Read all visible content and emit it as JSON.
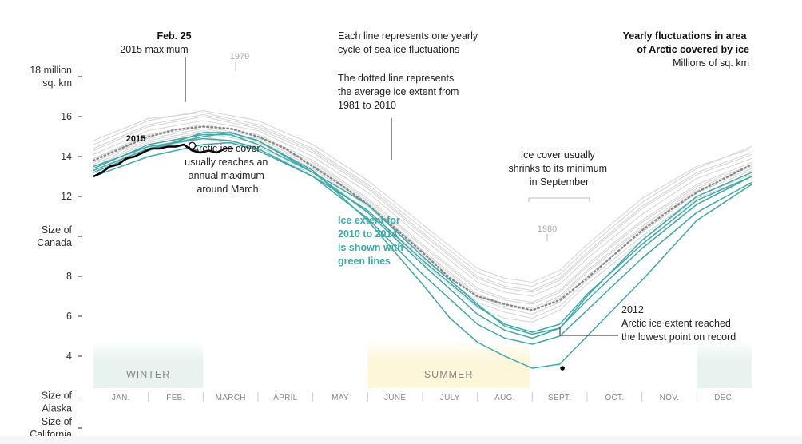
{
  "chart_data": {
    "type": "line",
    "title": "Yearly fluctuations in area of Arctic covered by ice",
    "title_lines": [
      "Yearly fluctuations in area",
      "of Arctic covered by ice"
    ],
    "subtitle": "Millions of sq. km",
    "y_unit_lines": [
      "18 million",
      "sq. km"
    ],
    "ylim": [
      0,
      18
    ],
    "grid": false,
    "y_ticks": [
      {
        "value": 18,
        "lines": [
          "18 million",
          "sq. km"
        ]
      },
      {
        "value": 16,
        "lines": [
          "16"
        ]
      },
      {
        "value": 14,
        "lines": [
          "14"
        ]
      },
      {
        "value": 12,
        "lines": [
          "12"
        ]
      },
      {
        "value": 10,
        "lines": [
          "Size of",
          "Canada"
        ]
      },
      {
        "value": 8,
        "lines": [
          "8"
        ]
      },
      {
        "value": 6,
        "lines": [
          "6"
        ]
      },
      {
        "value": 4,
        "lines": [
          "4"
        ]
      },
      {
        "value": 1.7,
        "lines": [
          "Size of",
          "Alaska"
        ]
      },
      {
        "value": 0.4,
        "lines": [
          "Size of",
          "California"
        ]
      }
    ],
    "months": [
      "JAN.",
      "FEB.",
      "MARCH",
      "APRIL",
      "MAY",
      "JUNE",
      "JULY",
      "AUG.",
      "SEPT.",
      "OCT.",
      "NOV.",
      "DEC."
    ],
    "seasons": [
      {
        "label": "WINTER",
        "start_month": 0,
        "end_month": 2,
        "color": "#e8f2ef"
      },
      {
        "label": "SUMMER",
        "start_month": 5,
        "end_month": 7.95,
        "color": "#fdf6d8"
      },
      {
        "label": "",
        "start_month": 11,
        "end_month": 12,
        "color": "#e8f2ef"
      }
    ],
    "x_unit": "month (decimal, 0 = Jan 1)",
    "average": {
      "name": "Average 1981-2010",
      "color": "#888888",
      "x": [
        0,
        0.5,
        1,
        1.5,
        2,
        2.5,
        3,
        3.5,
        4,
        4.5,
        5,
        5.5,
        6,
        6.5,
        7,
        7.5,
        8,
        8.5,
        9,
        9.5,
        10,
        10.5,
        11,
        11.5,
        12
      ],
      "y": [
        13.8,
        14.4,
        15.0,
        15.35,
        15.5,
        15.4,
        15.0,
        14.4,
        13.5,
        12.6,
        11.6,
        10.4,
        9.2,
        7.9,
        7.0,
        6.6,
        6.3,
        6.8,
        7.9,
        9.1,
        10.3,
        11.3,
        12.2,
        12.9,
        13.6
      ]
    },
    "gray_years": {
      "color": "#d6d6d6",
      "series": [
        {
          "x": [
            0,
            1,
            2,
            3,
            4,
            5,
            6,
            7,
            7.5,
            8,
            8.5,
            9,
            10,
            11,
            12
          ],
          "y": [
            14.4,
            15.6,
            16.1,
            15.5,
            14.3,
            12.5,
            10.2,
            8.0,
            7.5,
            7.3,
            7.9,
            9.2,
            11.5,
            13.2,
            14.2
          ]
        },
        {
          "x": [
            0,
            1,
            2,
            3,
            4,
            5,
            6,
            7,
            7.5,
            8,
            8.5,
            9,
            10,
            11,
            12
          ],
          "y": [
            14.1,
            15.3,
            15.8,
            15.3,
            14.0,
            12.2,
            9.9,
            7.7,
            7.2,
            7.0,
            7.6,
            8.9,
            11.1,
            12.9,
            13.9
          ]
        },
        {
          "x": [
            0,
            1,
            2,
            3,
            4,
            5,
            6,
            7,
            7.5,
            8,
            8.5,
            9,
            10,
            11,
            12
          ],
          "y": [
            13.9,
            15.1,
            15.6,
            15.1,
            13.8,
            11.9,
            9.6,
            7.4,
            6.9,
            6.7,
            7.3,
            8.6,
            10.8,
            12.6,
            13.7
          ]
        },
        {
          "x": [
            0,
            1,
            2,
            3,
            4,
            5,
            6,
            7,
            7.5,
            8,
            8.5,
            9,
            10,
            11,
            12
          ],
          "y": [
            13.7,
            14.9,
            15.4,
            14.9,
            13.6,
            11.7,
            9.3,
            7.1,
            6.6,
            6.4,
            7.0,
            8.3,
            10.5,
            12.4,
            13.5
          ]
        },
        {
          "x": [
            0,
            1,
            2,
            3,
            4,
            5,
            6,
            7,
            7.5,
            8,
            8.5,
            9,
            10,
            11,
            12
          ],
          "y": [
            13.5,
            14.7,
            15.2,
            14.7,
            13.4,
            11.5,
            9.1,
            6.9,
            6.4,
            6.1,
            6.7,
            8.0,
            10.2,
            12.2,
            13.3
          ]
        },
        {
          "x": [
            0,
            1,
            2,
            3,
            4,
            5,
            6,
            7,
            7.5,
            8,
            8.5,
            9,
            10,
            11,
            12
          ],
          "y": [
            13.3,
            14.5,
            15.0,
            14.5,
            13.2,
            11.3,
            8.9,
            6.7,
            6.2,
            5.9,
            6.5,
            7.8,
            10.0,
            12.0,
            13.1
          ]
        },
        {
          "x": [
            0,
            1,
            2,
            3,
            4,
            5,
            6,
            7,
            7.5,
            8,
            8.5,
            9,
            10,
            11,
            12
          ],
          "y": [
            14.6,
            15.8,
            16.3,
            15.8,
            14.6,
            12.8,
            10.6,
            8.4,
            7.9,
            7.7,
            8.3,
            9.6,
            11.9,
            13.5,
            14.4
          ]
        },
        {
          "x": [
            0,
            1,
            2,
            3,
            4,
            5,
            6,
            7,
            7.5,
            8,
            8.5,
            9,
            10,
            11,
            12
          ],
          "y": [
            14.8,
            15.9,
            16.2,
            15.6,
            14.4,
            12.6,
            10.4,
            8.2,
            7.7,
            7.5,
            8.1,
            9.4,
            11.7,
            13.4,
            14.5
          ]
        },
        {
          "x": [
            0,
            1,
            2,
            3,
            4,
            5,
            6,
            7,
            7.5,
            8,
            8.5,
            9,
            10,
            11,
            12
          ],
          "y": [
            13.9,
            15.0,
            15.5,
            15.0,
            13.7,
            11.8,
            9.5,
            7.3,
            6.8,
            6.6,
            7.2,
            8.5,
            10.7,
            12.5,
            13.6
          ]
        },
        {
          "x": [
            0,
            1,
            2,
            3,
            4,
            5,
            6,
            7,
            7.5,
            8,
            8.5,
            9,
            10,
            11,
            12
          ],
          "y": [
            13.6,
            14.8,
            15.3,
            14.8,
            13.5,
            11.6,
            9.2,
            7.0,
            6.5,
            6.3,
            6.9,
            8.2,
            10.4,
            12.3,
            13.4
          ]
        },
        {
          "x": [
            0,
            1,
            2,
            3,
            4,
            5,
            6,
            7,
            7.5,
            8,
            8.5,
            9,
            10,
            11,
            12
          ],
          "y": [
            13.2,
            14.4,
            14.9,
            14.4,
            13.1,
            11.2,
            8.7,
            6.4,
            5.9,
            5.7,
            6.3,
            7.6,
            9.8,
            11.9,
            13.0
          ]
        },
        {
          "x": [
            0,
            1,
            2,
            3,
            4,
            5,
            6,
            7,
            7.5,
            8,
            8.5,
            9,
            10,
            11,
            12
          ],
          "y": [
            14.3,
            15.5,
            16.0,
            15.4,
            14.2,
            12.4,
            10.1,
            7.9,
            7.4,
            7.2,
            7.8,
            9.1,
            11.4,
            13.1,
            14.1
          ]
        }
      ]
    },
    "green_years": {
      "name": "2010 to 2014",
      "color": "#3fa9a8",
      "series": [
        {
          "name": "2010",
          "x": [
            0,
            1,
            2,
            2.5,
            3,
            4,
            5,
            6,
            7,
            7.5,
            8,
            8.5,
            9,
            10,
            11,
            12
          ],
          "y": [
            13.2,
            14.3,
            15.2,
            15.2,
            14.8,
            13.2,
            11.2,
            8.6,
            6.1,
            5.3,
            4.9,
            5.4,
            6.8,
            9.4,
            11.6,
            13.0
          ]
        },
        {
          "name": "2011",
          "x": [
            0,
            1,
            2,
            2.5,
            3,
            4,
            5,
            6,
            7,
            7.5,
            8,
            8.5,
            9,
            10,
            11,
            12
          ],
          "y": [
            13.0,
            14.0,
            14.6,
            14.7,
            14.3,
            13.0,
            10.9,
            8.1,
            5.6,
            4.9,
            4.6,
            5.0,
            6.3,
            8.9,
            11.2,
            12.7
          ]
        },
        {
          "name": "2012",
          "x": [
            0,
            1,
            2,
            2.5,
            3,
            4,
            5,
            6,
            6.5,
            7,
            7.5,
            8,
            8.5,
            9,
            10,
            11,
            12
          ],
          "y": [
            13.3,
            14.4,
            15.0,
            15.2,
            14.8,
            13.3,
            10.8,
            7.6,
            5.9,
            4.7,
            4.0,
            3.4,
            3.6,
            5.0,
            7.8,
            10.8,
            12.6
          ]
        },
        {
          "name": "2013",
          "x": [
            0,
            1,
            2,
            2.5,
            3,
            4,
            5,
            6,
            7,
            7.5,
            8,
            8.5,
            9,
            10,
            11,
            12
          ],
          "y": [
            13.4,
            14.6,
            15.1,
            15.1,
            14.6,
            13.2,
            11.6,
            9.0,
            6.6,
            5.5,
            5.1,
            5.4,
            7.0,
            9.8,
            12.0,
            13.2
          ]
        },
        {
          "name": "2014",
          "x": [
            0,
            1,
            2,
            2.5,
            3,
            4,
            5,
            6,
            7,
            7.5,
            8,
            8.5,
            9,
            10,
            11,
            12
          ],
          "y": [
            13.5,
            14.5,
            14.9,
            14.8,
            14.4,
            13.0,
            11.3,
            8.8,
            6.5,
            5.6,
            5.2,
            5.6,
            7.1,
            9.6,
            11.8,
            13.0
          ]
        }
      ]
    },
    "year_2015": {
      "name": "2015",
      "color": "#000000",
      "x": [
        0,
        0.15,
        0.3,
        0.45,
        0.6,
        0.75,
        0.9,
        1.05,
        1.2,
        1.35,
        1.5,
        1.65,
        1.8,
        1.95,
        2.1,
        2.25,
        2.4,
        2.55
      ],
      "y": [
        13.0,
        13.2,
        13.5,
        13.6,
        13.9,
        14.0,
        14.2,
        14.4,
        14.4,
        14.5,
        14.5,
        14.6,
        14.3,
        14.2,
        14.3,
        14.2,
        14.4,
        14.4
      ]
    },
    "markers": [
      {
        "name": "2015-maximum",
        "x": 1.8,
        "y": 14.55,
        "fill": "#ffffff",
        "stroke": "#000000"
      },
      {
        "name": "2012-minimum",
        "x": 8.55,
        "y": 3.4,
        "fill": "#000000",
        "stroke": "#000000"
      }
    ],
    "annotations": {
      "feb25": {
        "bold": "Feb. 25",
        "text": "2015 maximum"
      },
      "label_1979": "1979",
      "label_1980": "1980",
      "label_2015": "2015",
      "each_line": [
        "Each line represents one yearly",
        "cycle of sea ice fluctuations"
      ],
      "dotted_line": [
        "The dotted line represents",
        "the average ice extent from",
        "1981 to 2010"
      ],
      "arctic_ice_cover": [
        "Arctic ice cover",
        "usually reaches an",
        "annual maximum",
        "around March"
      ],
      "ice_cover_shrinks": [
        "Ice cover usually",
        "shrinks to its minimum",
        "in September"
      ],
      "green_note": [
        "Ice extent for",
        "2010 to 2014",
        "is shown with",
        "green lines"
      ],
      "record_2012": {
        "bold": "2012",
        "lines": [
          "Arctic ice extent reached",
          "the lowest point on record"
        ]
      }
    }
  }
}
